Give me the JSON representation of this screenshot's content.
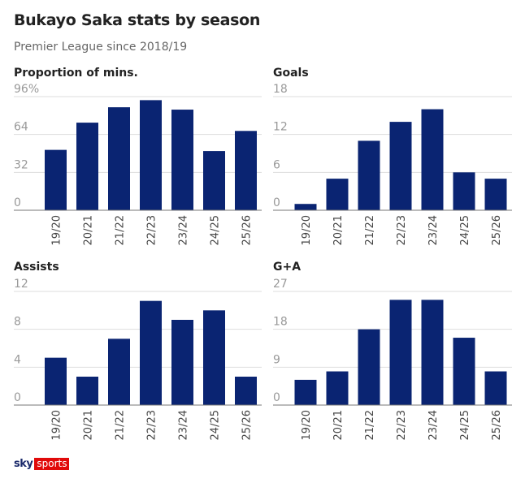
{
  "header": {
    "title": "Bukayo Saka stats by season",
    "subtitle": "Premier League since 2018/19"
  },
  "logo": {
    "text_sky": "sky",
    "text_sports": "sports"
  },
  "colors": {
    "bar": "#0a2472",
    "grid": "#dddddd",
    "axis": "#777777",
    "tick": "#999999"
  },
  "chart_data": [
    {
      "type": "bar",
      "title": "Proportion of mins.",
      "categories": [
        "19/20",
        "20/21",
        "21/22",
        "22/23",
        "23/24",
        "24/25",
        "25/26"
      ],
      "values": [
        51,
        74,
        87,
        93,
        85,
        50,
        67
      ],
      "ylim": [
        0,
        96
      ],
      "yticks": [
        0,
        32,
        64,
        96
      ],
      "ytick_labels": [
        "0",
        "32",
        "64",
        "96%"
      ],
      "grid": true
    },
    {
      "type": "bar",
      "title": "Goals",
      "categories": [
        "19/20",
        "20/21",
        "21/22",
        "22/23",
        "23/24",
        "24/25",
        "25/26"
      ],
      "values": [
        1,
        5,
        11,
        14,
        16,
        6,
        5
      ],
      "ylim": [
        0,
        18
      ],
      "yticks": [
        0,
        6,
        12,
        18
      ],
      "ytick_labels": [
        "0",
        "6",
        "12",
        "18"
      ],
      "grid": true
    },
    {
      "type": "bar",
      "title": "Assists",
      "categories": [
        "19/20",
        "20/21",
        "21/22",
        "22/23",
        "23/24",
        "24/25",
        "25/26"
      ],
      "values": [
        5,
        3,
        7,
        11,
        9,
        10,
        3
      ],
      "ylim": [
        0,
        12
      ],
      "yticks": [
        0,
        4,
        8,
        12
      ],
      "ytick_labels": [
        "0",
        "4",
        "8",
        "12"
      ],
      "grid": true
    },
    {
      "type": "bar",
      "title": "G+A",
      "categories": [
        "19/20",
        "20/21",
        "21/22",
        "22/23",
        "23/24",
        "24/25",
        "25/26"
      ],
      "values": [
        6,
        8,
        18,
        25,
        25,
        16,
        8
      ],
      "ylim": [
        0,
        27
      ],
      "yticks": [
        0,
        9,
        18,
        27
      ],
      "ytick_labels": [
        "0",
        "9",
        "18",
        "27"
      ],
      "grid": true
    }
  ]
}
